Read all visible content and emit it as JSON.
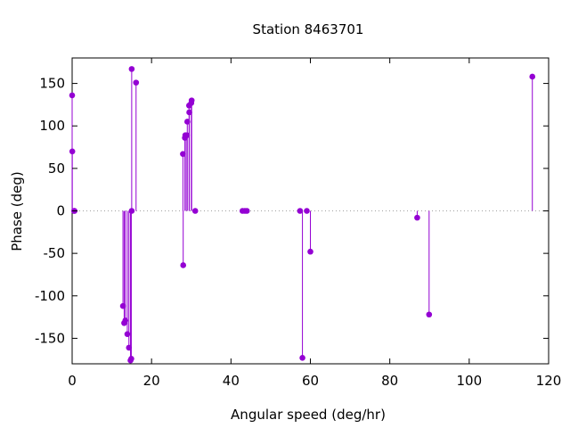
{
  "chart_data": {
    "type": "stem",
    "title": "Station 8463701",
    "xlabel": "Angular speed (deg/hr)",
    "ylabel": "Phase (deg)",
    "xlim": [
      0,
      120
    ],
    "ylim": [
      -180,
      180
    ],
    "xticks": [
      0,
      20,
      40,
      60,
      80,
      100,
      120
    ],
    "yticks": [
      -150,
      -100,
      -50,
      0,
      50,
      100,
      150
    ],
    "xtick_labels": [
      "0",
      "20",
      "40",
      "60",
      "80",
      "100",
      "120"
    ],
    "ytick_labels": [
      "-150",
      "-100",
      "-50",
      "0",
      "50",
      "100",
      "150"
    ],
    "baseline": 0,
    "grid": false,
    "color": "#9400d3",
    "points": [
      {
        "x": 0.0,
        "y": 136
      },
      {
        "x": 0.04,
        "y": 70
      },
      {
        "x": 0.5,
        "y": 0
      },
      {
        "x": 0.6,
        "y": 0
      },
      {
        "x": 12.8,
        "y": -112
      },
      {
        "x": 13.1,
        "y": -132
      },
      {
        "x": 13.4,
        "y": -129
      },
      {
        "x": 13.9,
        "y": -145
      },
      {
        "x": 14.3,
        "y": -161
      },
      {
        "x": 14.7,
        "y": -176
      },
      {
        "x": 14.9,
        "y": -174
      },
      {
        "x": 15.0,
        "y": 0
      },
      {
        "x": 15.0,
        "y": 167
      },
      {
        "x": 16.1,
        "y": 151
      },
      {
        "x": 27.9,
        "y": 67
      },
      {
        "x": 27.97,
        "y": -64
      },
      {
        "x": 28.4,
        "y": 86
      },
      {
        "x": 28.5,
        "y": 89
      },
      {
        "x": 28.9,
        "y": 89
      },
      {
        "x": 29.0,
        "y": 105
      },
      {
        "x": 29.45,
        "y": 124
      },
      {
        "x": 29.5,
        "y": 116
      },
      {
        "x": 30.0,
        "y": 127
      },
      {
        "x": 30.1,
        "y": 130
      },
      {
        "x": 31.0,
        "y": 0
      },
      {
        "x": 42.9,
        "y": 0
      },
      {
        "x": 43.5,
        "y": 0
      },
      {
        "x": 44.0,
        "y": 0
      },
      {
        "x": 57.4,
        "y": 0
      },
      {
        "x": 58.0,
        "y": -173
      },
      {
        "x": 59.1,
        "y": 0
      },
      {
        "x": 60.0,
        "y": -48
      },
      {
        "x": 86.9,
        "y": -8
      },
      {
        "x": 89.9,
        "y": -122
      },
      {
        "x": 115.9,
        "y": 158
      }
    ]
  }
}
